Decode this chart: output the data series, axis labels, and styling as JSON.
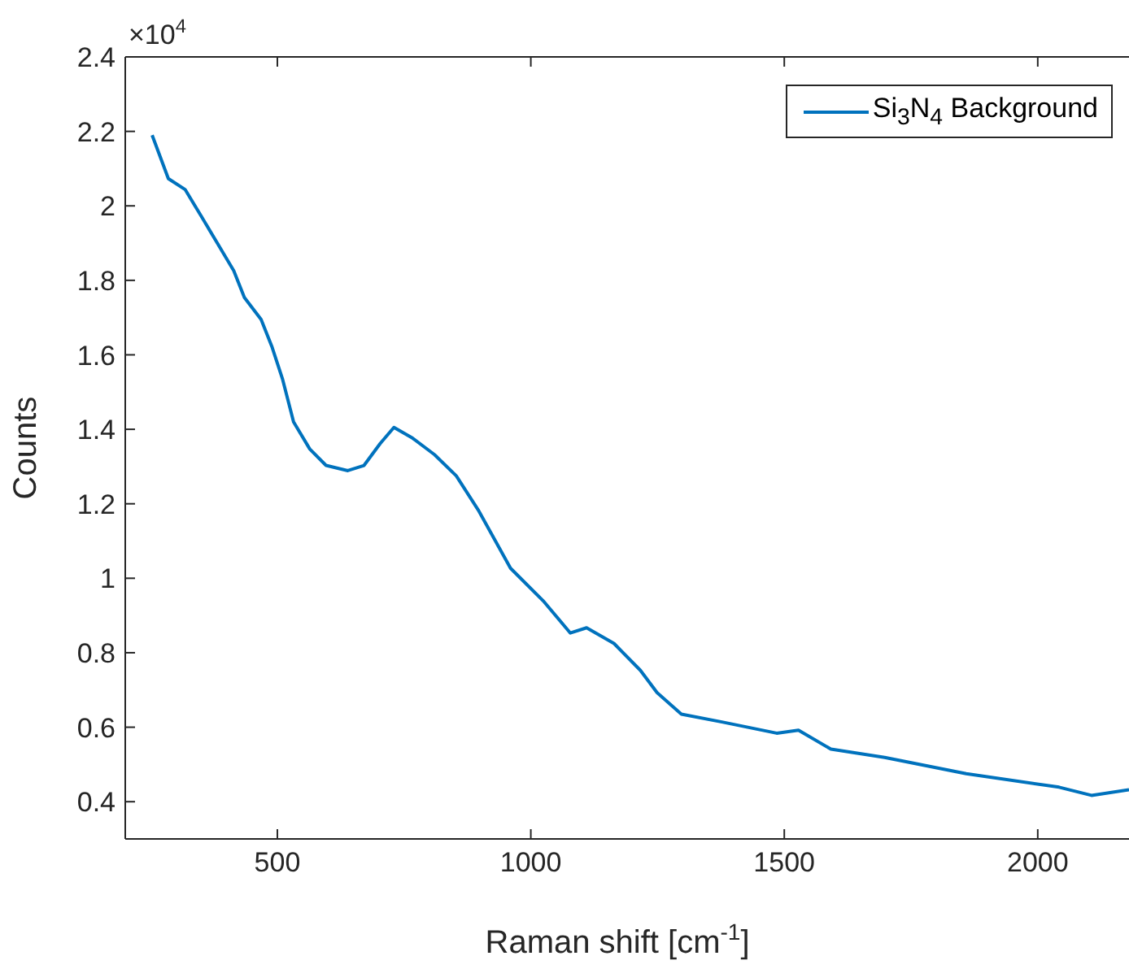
{
  "chart_data": {
    "type": "line",
    "xlabel": "Raman shift [cm$^{-1}$]",
    "ylabel": "Counts",
    "annotations": [
      "×10$^{4}$"
    ],
    "xlim": [
      200,
      2180
    ],
    "xticks": [
      500,
      1000,
      1500,
      2000
    ],
    "ylim": [
      0.3,
      2.4
    ],
    "yticks": [
      0.4,
      0.6,
      0.8,
      1,
      1.2,
      1.4,
      1.6,
      1.8,
      2,
      2.2,
      2.4
    ],
    "grid": false,
    "legend": "top right",
    "marker": "none",
    "line_style": "solid",
    "series": [
      {
        "name": "Si$_{3}$N$_{4}$ Background",
        "color": "#0072bd",
        "x": [
          253,
          285,
          318,
          350,
          382,
          414,
          435,
          468,
          489,
          510,
          532,
          564,
          596,
          639,
          671,
          703,
          730,
          767,
          810,
          853,
          896,
          960,
          1024,
          1078,
          1110,
          1164,
          1216,
          1249,
          1297,
          1377,
          1485,
          1528,
          1592,
          1698,
          1859,
          2042,
          2106,
          2180
        ],
        "values": [
          2.19,
          2.073,
          2.044,
          1.972,
          1.899,
          1.826,
          1.754,
          1.695,
          1.623,
          1.536,
          1.42,
          1.347,
          1.303,
          1.289,
          1.303,
          1.362,
          1.405,
          1.376,
          1.332,
          1.275,
          1.184,
          1.027,
          0.94,
          0.853,
          0.867,
          0.825,
          0.753,
          0.693,
          0.635,
          0.614,
          0.584,
          0.592,
          0.541,
          0.519,
          0.475,
          0.439,
          0.417,
          0.432
        ]
      }
    ]
  }
}
